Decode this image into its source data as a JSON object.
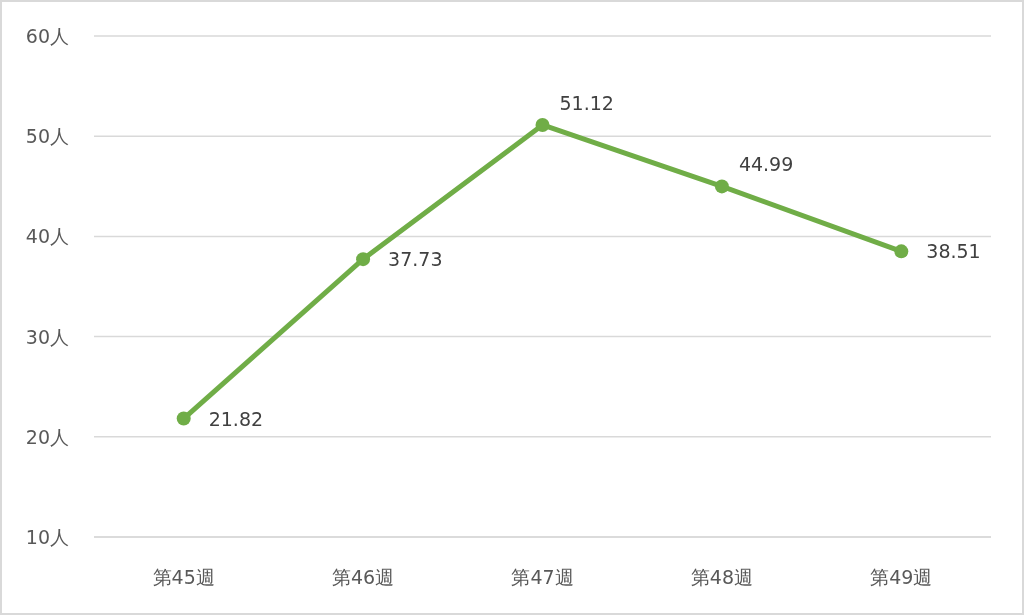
{
  "chart_data": {
    "type": "line",
    "categories": [
      "第45週",
      "第46週",
      "第47週",
      "第48週",
      "第49週"
    ],
    "series": [
      {
        "color": "#70ad47",
        "values": [
          21.82,
          37.73,
          51.12,
          44.99,
          38.51
        ]
      }
    ],
    "ylim": [
      10,
      60
    ],
    "yticks": [
      {
        "value": 10,
        "label": "10人"
      },
      {
        "value": 20,
        "label": "20人"
      },
      {
        "value": 30,
        "label": "30人"
      },
      {
        "value": 40,
        "label": "40人"
      },
      {
        "value": 50,
        "label": "50人"
      },
      {
        "value": 60,
        "label": "60人"
      }
    ],
    "grid": "y",
    "marker": "circle",
    "line_style": "solid",
    "data_labels": true
  }
}
